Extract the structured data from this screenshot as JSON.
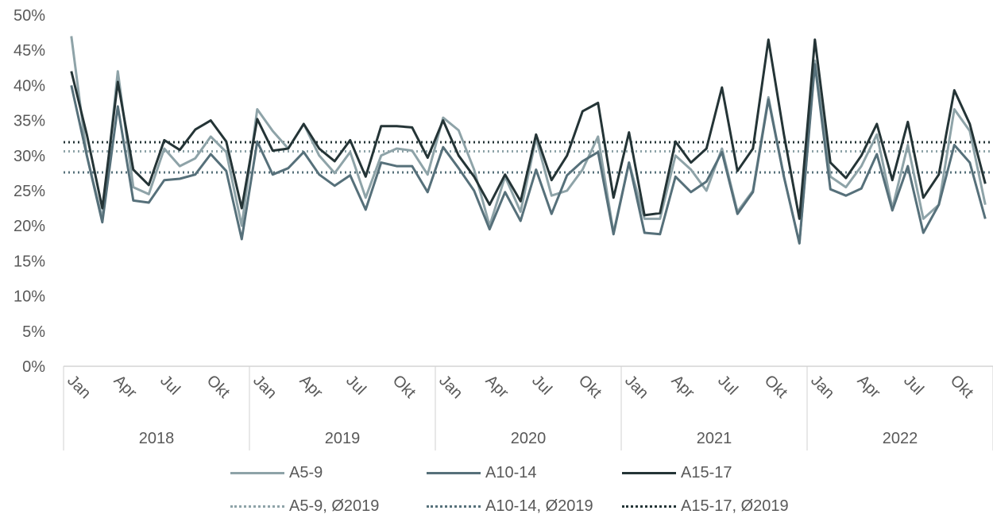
{
  "chart_data": {
    "type": "line",
    "title": "",
    "xlabel": "",
    "ylabel": "",
    "ylim": [
      0,
      0.5
    ],
    "yticks": [
      "0%",
      "5%",
      "10%",
      "15%",
      "20%",
      "25%",
      "30%",
      "35%",
      "40%",
      "45%",
      "50%"
    ],
    "month_ticks": [
      "Jan",
      "Apr",
      "Jul",
      "Okt"
    ],
    "years": [
      "2018",
      "2019",
      "2020",
      "2021",
      "2022"
    ],
    "grid": false,
    "legend_position": "bottom",
    "series": [
      {
        "name": "A5-9",
        "color": "#8ea3a8",
        "style": "solid",
        "values": [
          0.47,
          0.3,
          0.21,
          0.42,
          0.255,
          0.245,
          0.31,
          0.285,
          0.296,
          0.327,
          0.305,
          0.2,
          0.366,
          0.335,
          0.31,
          0.345,
          0.3,
          0.275,
          0.305,
          0.24,
          0.3,
          0.31,
          0.307,
          0.273,
          0.354,
          0.336,
          0.28,
          0.2,
          0.27,
          0.22,
          0.325,
          0.243,
          0.25,
          0.28,
          0.327,
          0.19,
          0.29,
          0.21,
          0.21,
          0.3,
          0.28,
          0.25,
          0.31,
          0.22,
          0.25,
          0.383,
          0.27,
          0.175,
          0.435,
          0.27,
          0.255,
          0.285,
          0.33,
          0.225,
          0.315,
          0.21,
          0.23,
          0.366,
          0.335,
          0.23
        ]
      },
      {
        "name": "A10-14",
        "color": "#56707a",
        "style": "solid",
        "values": [
          0.4,
          0.3,
          0.205,
          0.37,
          0.236,
          0.233,
          0.265,
          0.267,
          0.273,
          0.302,
          0.278,
          0.181,
          0.32,
          0.273,
          0.282,
          0.305,
          0.273,
          0.257,
          0.272,
          0.223,
          0.29,
          0.285,
          0.285,
          0.248,
          0.312,
          0.282,
          0.25,
          0.195,
          0.248,
          0.207,
          0.28,
          0.217,
          0.272,
          0.292,
          0.305,
          0.188,
          0.29,
          0.19,
          0.188,
          0.27,
          0.248,
          0.263,
          0.305,
          0.217,
          0.248,
          0.38,
          0.27,
          0.175,
          0.43,
          0.252,
          0.243,
          0.253,
          0.302,
          0.222,
          0.285,
          0.19,
          0.23,
          0.315,
          0.29,
          0.21
        ]
      },
      {
        "name": "A15-17",
        "color": "#243436",
        "style": "solid",
        "values": [
          0.42,
          0.33,
          0.225,
          0.405,
          0.28,
          0.258,
          0.322,
          0.308,
          0.337,
          0.35,
          0.32,
          0.225,
          0.352,
          0.307,
          0.31,
          0.345,
          0.31,
          0.292,
          0.322,
          0.27,
          0.342,
          0.342,
          0.34,
          0.297,
          0.35,
          0.3,
          0.27,
          0.23,
          0.273,
          0.235,
          0.33,
          0.265,
          0.3,
          0.363,
          0.375,
          0.24,
          0.333,
          0.215,
          0.218,
          0.32,
          0.29,
          0.31,
          0.397,
          0.278,
          0.31,
          0.465,
          0.33,
          0.21,
          0.465,
          0.29,
          0.268,
          0.3,
          0.345,
          0.265,
          0.348,
          0.24,
          0.273,
          0.393,
          0.345,
          0.26
        ]
      },
      {
        "name": "A5-9, Ø2019",
        "color": "#8ea3a8",
        "style": "dotted",
        "constant": 0.306
      },
      {
        "name": "A10-14, Ø2019",
        "color": "#56707a",
        "style": "dotted",
        "constant": 0.276
      },
      {
        "name": "A15-17, Ø2019",
        "color": "#243436",
        "style": "dotted",
        "constant": 0.319
      }
    ]
  }
}
